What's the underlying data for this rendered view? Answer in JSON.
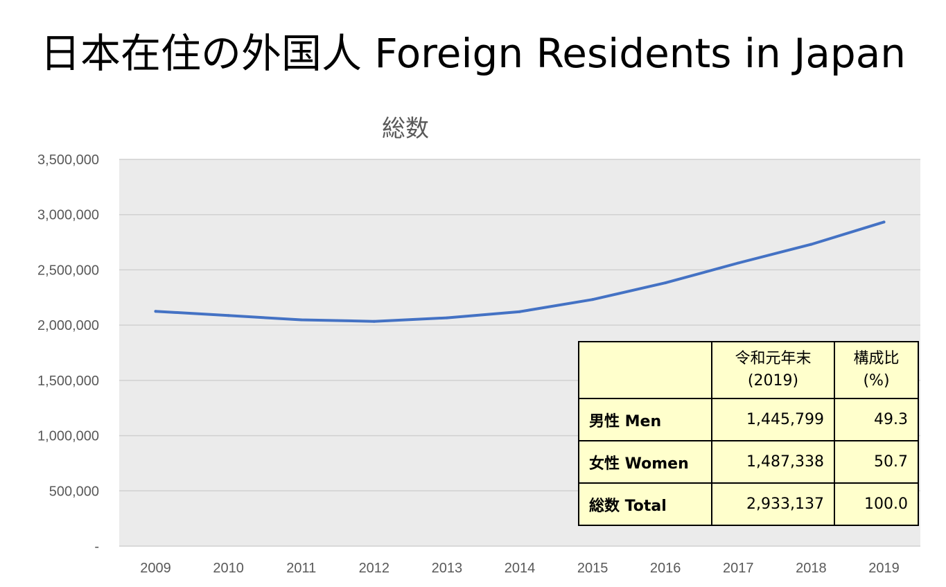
{
  "page": {
    "title": "日本在住の外国人 Foreign Residents in Japan"
  },
  "chart_data": {
    "type": "line",
    "title": "総数",
    "x": [
      "2009",
      "2010",
      "2011",
      "2012",
      "2013",
      "2014",
      "2015",
      "2016",
      "2017",
      "2018",
      "2019"
    ],
    "series": [
      {
        "values": [
          2125000,
          2087000,
          2048000,
          2034000,
          2066000,
          2122000,
          2232000,
          2383000,
          2562000,
          2731000,
          2933137
        ],
        "color": "#4472c4"
      }
    ],
    "y_ticks": [
      "-",
      "500,000",
      "1,000,000",
      "1,500,000",
      "2,000,000",
      "2,500,000",
      "3,000,000",
      "3,500,000"
    ],
    "ylim": [
      0,
      3500000
    ],
    "grid": true,
    "plot_background": "#ebebeb",
    "gridline_color": "#d0d0d0"
  },
  "table": {
    "header": {
      "label": "",
      "col1": "令和元年末\n(2019)",
      "col2": "構成比\n(%)"
    },
    "rows": [
      {
        "label": "男性 Men",
        "value": "1,445,799",
        "pct": "49.3"
      },
      {
        "label": "女性 Women",
        "value": "1,487,338",
        "pct": "50.7"
      },
      {
        "label": "総数 Total",
        "value": "2,933,137",
        "pct": "100.0"
      }
    ],
    "background": "#ffffcc"
  }
}
